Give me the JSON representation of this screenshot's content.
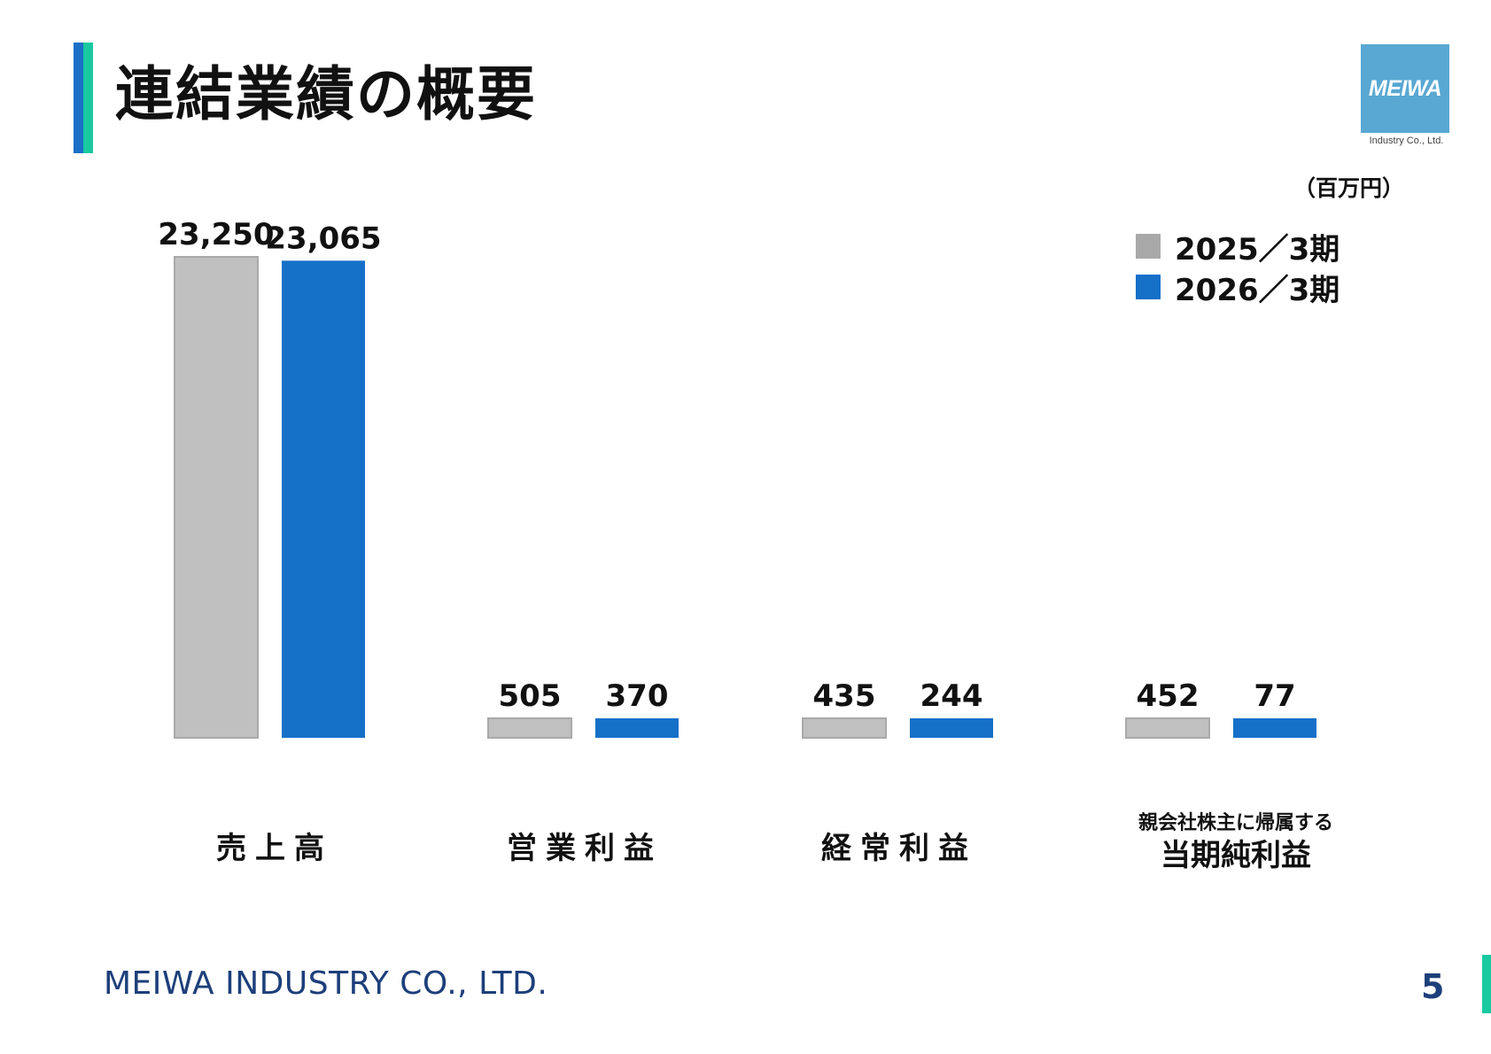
{
  "header": {
    "title": "連結業績の概要",
    "logo_text": "MEIWA",
    "logo_subtitle": "Industry Co., Ltd."
  },
  "unit_label": "（百万円）",
  "legend": [
    {
      "label": "2025／3期",
      "color": "#c0c0c0"
    },
    {
      "label": "2026／3期",
      "color": "#1570c8"
    }
  ],
  "categories": [
    {
      "lines": [
        "売上高"
      ]
    },
    {
      "lines": [
        "営業利益"
      ]
    },
    {
      "lines": [
        "経常利益"
      ]
    },
    {
      "lines": [
        "親会社株主に帰属する",
        "当期純利益"
      ]
    }
  ],
  "chart_data": {
    "type": "bar",
    "categories": [
      "売上高",
      "営業利益",
      "経常利益",
      "親会社株主に帰属する当期純利益"
    ],
    "series": [
      {
        "name": "2025／3期",
        "values": [
          23250,
          505,
          435,
          452
        ],
        "labels": [
          "23,250",
          "505",
          "435",
          "452"
        ],
        "color": "#c0c0c0"
      },
      {
        "name": "2026／3期",
        "values": [
          23065,
          370,
          244,
          77
        ],
        "labels": [
          "23,065",
          "370",
          "244",
          "77"
        ],
        "color": "#1570c8"
      }
    ],
    "unit": "百万円",
    "grid": false,
    "legend_position": "top-right"
  },
  "footer": {
    "company": "MEIWA INDUSTRY CO., LTD.",
    "page_number": "5"
  }
}
